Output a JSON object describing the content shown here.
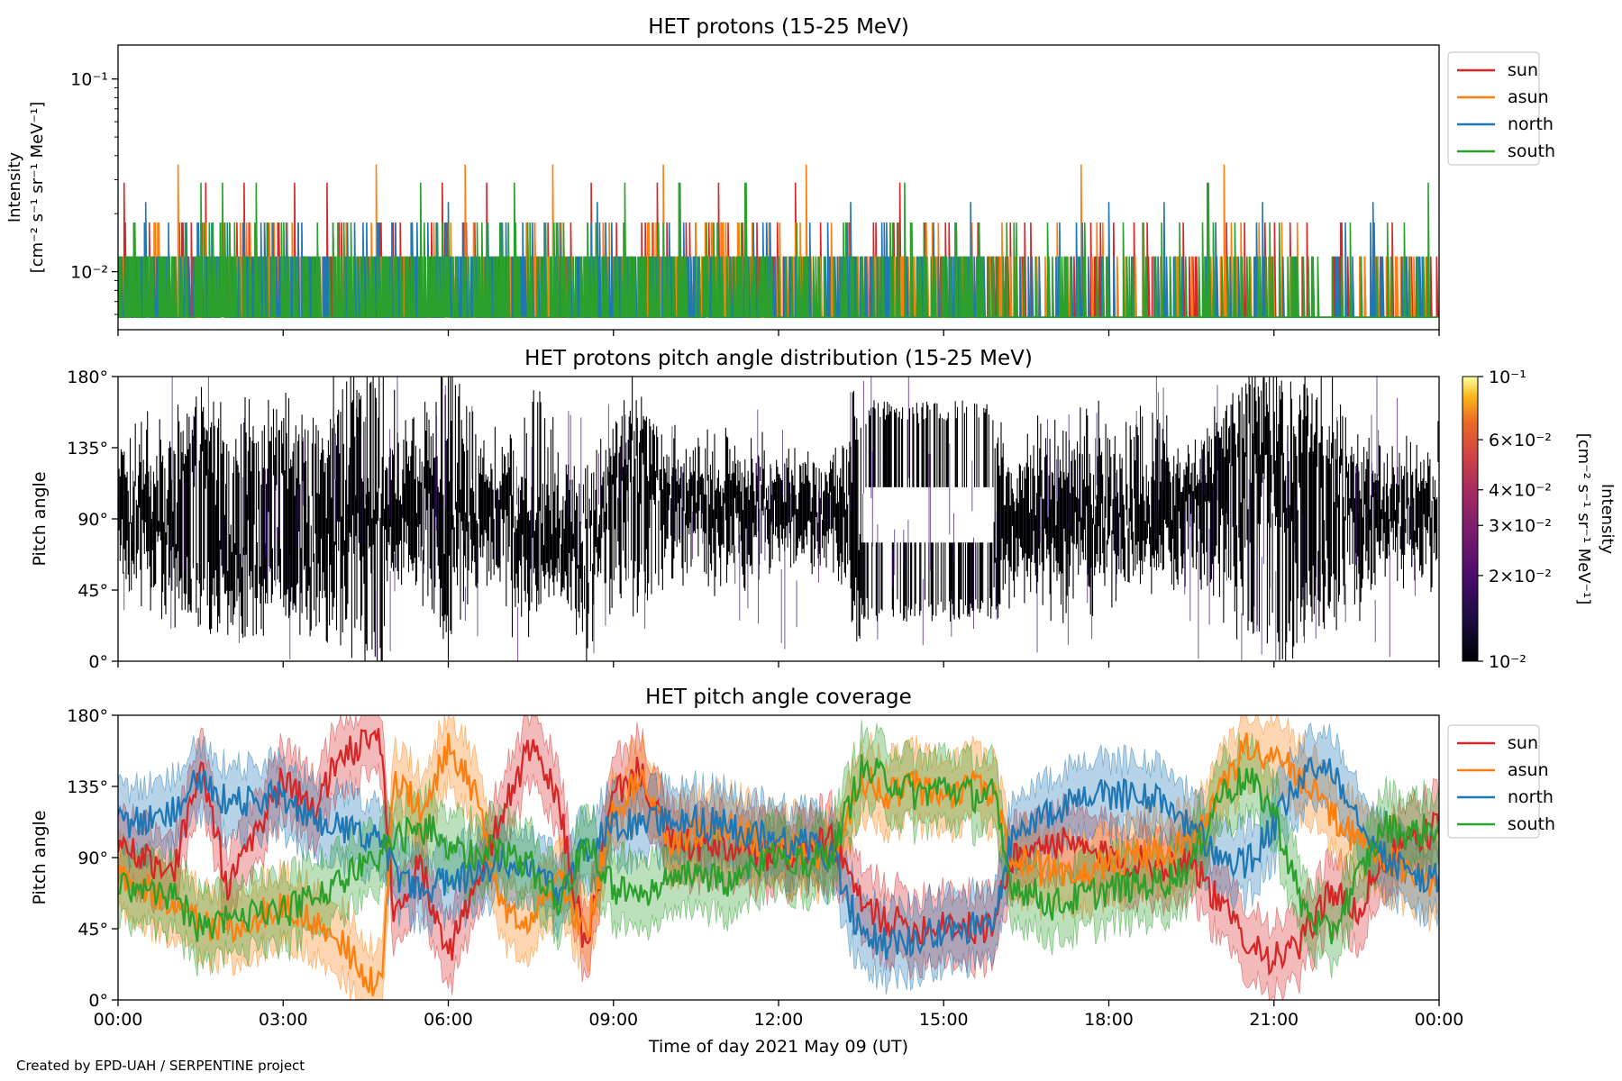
{
  "figure": {
    "xlabel": "Time of day 2021 May 09 (UT)",
    "xticks": [
      "00:00",
      "03:00",
      "06:00",
      "09:00",
      "12:00",
      "15:00",
      "18:00",
      "21:00",
      "00:00"
    ],
    "credit": "Created by EPD-UAH / SERPENTINE project"
  },
  "chart_data": [
    {
      "type": "line",
      "title": "HET protons (15-25 MeV)",
      "ylabel_line1": "Intensity",
      "ylabel_line2": "[cm⁻² s⁻¹ sr⁻¹ MeV⁻¹]",
      "yscale": "log",
      "ylim": [
        0.005,
        0.15
      ],
      "ytick_labels": [
        "10⁻¹",
        "10⁻²"
      ],
      "ytick_values": [
        0.1,
        0.01
      ],
      "xlim_hours": [
        0,
        24
      ],
      "legend_position": "outside-top-right",
      "series": [
        {
          "name": "sun",
          "color": "#d62728",
          "baseline": 0.0058,
          "levels": [
            0.012,
            0.018,
            0.029
          ],
          "spike_hours": [
            0.1,
            1.6,
            2.3,
            3.2,
            3.8,
            5.9,
            6.7,
            8.6,
            9.8,
            10.9,
            12.3,
            14.2
          ]
        },
        {
          "name": "asun",
          "color": "#ff7f0e",
          "baseline": 0.0058,
          "levels": [
            0.012,
            0.018,
            0.036
          ],
          "spike_hours": [
            1.1,
            4.7,
            6.3,
            7.9,
            9.9,
            12.5,
            17.5,
            20.1
          ]
        },
        {
          "name": "north",
          "color": "#1f77b4",
          "baseline": 0.0058,
          "levels": [
            0.012,
            0.018,
            0.023
          ],
          "spike_hours": [
            0.5,
            2.5,
            6.0,
            8.7,
            13.3,
            15.5,
            18.0,
            19.0,
            20.8,
            22.8
          ]
        },
        {
          "name": "south",
          "color": "#2ca02c",
          "baseline": 0.0058,
          "levels": [
            0.012,
            0.018,
            0.029
          ],
          "spike_hours": [
            1.5,
            1.9,
            2.5,
            5.5,
            7.2,
            9.2,
            10.2,
            11.4,
            14.3,
            19.8,
            23.8
          ]
        }
      ]
    },
    {
      "type": "heatmap",
      "title": "HET protons pitch angle distribution (15-25 MeV)",
      "ylabel": "Pitch angle",
      "ylim": [
        0,
        180
      ],
      "ytick_labels": [
        "0°",
        "45°",
        "90°",
        "135°",
        "180°"
      ],
      "ytick_values": [
        0,
        45,
        90,
        135,
        180
      ],
      "colorbar": {
        "label_line1": "Intensity",
        "label_line2": "[cm⁻² s⁻¹ sr⁻¹ MeV⁻¹]",
        "scale": "log",
        "range": [
          0.01,
          0.1
        ],
        "tick_labels": [
          "10⁻¹",
          "6×10⁻²",
          "4×10⁻²",
          "3×10⁻²",
          "2×10⁻²",
          "10⁻²"
        ],
        "tick_values": [
          0.1,
          0.06,
          0.04,
          0.03,
          0.02,
          0.01
        ],
        "colormap": "inferno"
      },
      "description_values": {
        "dominant_intensity": 0.01,
        "coverage_follows": "HET pitch angle coverage (sun/asun/north/south)"
      }
    },
    {
      "type": "line",
      "title": "HET pitch angle coverage",
      "ylabel": "Pitch angle",
      "ylim": [
        0,
        180
      ],
      "ytick_labels": [
        "0°",
        "45°",
        "90°",
        "135°",
        "180°"
      ],
      "ytick_values": [
        0,
        45,
        90,
        135,
        180
      ],
      "xlim_hours": [
        0,
        24
      ],
      "band_halfwidth_deg": 22,
      "legend_position": "outside-top-right",
      "series": [
        {
          "name": "sun",
          "color": "#d62728",
          "hours": [
            0,
            1,
            1.5,
            2,
            3,
            3.5,
            4,
            4.5,
            4.8,
            5.0,
            5.5,
            6.0,
            6.5,
            7,
            7.5,
            8,
            8.5,
            9,
            9.5,
            10,
            11,
            12,
            12.5,
            13,
            13.5,
            14,
            14.5,
            15,
            15.5,
            15.9,
            16.2,
            17,
            18,
            19,
            19.5,
            20,
            20.5,
            21,
            21.5,
            22,
            22.5,
            23,
            23.5,
            24
          ],
          "values": [
            100,
            80,
            150,
            70,
            140,
            120,
            150,
            165,
            160,
            60,
            85,
            30,
            70,
            120,
            160,
            125,
            30,
            130,
            145,
            100,
            95,
            90,
            95,
            100,
            60,
            50,
            45,
            50,
            45,
            45,
            90,
            100,
            90,
            85,
            90,
            60,
            40,
            25,
            35,
            70,
            55,
            90,
            100,
            110
          ]
        },
        {
          "name": "asun",
          "color": "#ff7f0e",
          "hours": [
            0,
            1,
            1.5,
            2,
            3,
            3.5,
            4,
            4.5,
            4.8,
            5.0,
            5.5,
            6.0,
            6.5,
            7,
            7.5,
            8,
            8.5,
            9,
            9.5,
            10,
            11,
            12,
            12.5,
            13,
            13.5,
            14,
            14.5,
            15,
            15.5,
            15.9,
            16.2,
            17,
            18,
            19,
            19.5,
            20,
            20.5,
            21,
            21.5,
            22,
            22.5,
            23,
            23.5,
            24
          ],
          "values": [
            80,
            60,
            50,
            45,
            60,
            50,
            40,
            15,
            10,
            140,
            120,
            160,
            130,
            60,
            50,
            80,
            40,
            120,
            140,
            100,
            110,
            95,
            95,
            90,
            140,
            130,
            135,
            130,
            135,
            130,
            90,
            80,
            85,
            95,
            100,
            130,
            160,
            155,
            140,
            120,
            100,
            90,
            80,
            70
          ]
        },
        {
          "name": "north",
          "color": "#1f77b4",
          "hours": [
            0,
            1,
            1.5,
            2,
            3,
            3.5,
            4,
            4.5,
            4.8,
            5.0,
            5.5,
            6.0,
            6.5,
            7,
            7.5,
            8,
            8.5,
            9,
            9.5,
            10,
            11,
            12,
            12.5,
            13,
            13.5,
            14,
            14.5,
            15,
            15.5,
            15.9,
            16.2,
            17,
            18,
            19,
            19.5,
            20,
            20.5,
            21,
            21.5,
            22,
            22.5,
            23,
            23.5,
            24
          ],
          "values": [
            110,
            120,
            140,
            125,
            130,
            115,
            110,
            105,
            100,
            80,
            70,
            75,
            80,
            90,
            85,
            70,
            95,
            110,
            110,
            115,
            110,
            100,
            100,
            90,
            40,
            35,
            40,
            45,
            45,
            45,
            100,
            120,
            130,
            125,
            110,
            90,
            85,
            110,
            140,
            150,
            120,
            90,
            80,
            75
          ]
        },
        {
          "name": "south",
          "color": "#2ca02c",
          "hours": [
            0,
            1,
            1.5,
            2,
            3,
            3.5,
            4,
            4.5,
            4.8,
            5.0,
            5.5,
            6.0,
            6.5,
            7,
            7.5,
            8,
            8.5,
            9,
            9.5,
            10,
            11,
            12,
            12.5,
            13,
            13.5,
            14,
            14.5,
            15,
            15.5,
            15.9,
            16.2,
            17,
            18,
            19,
            19.5,
            20,
            20.5,
            21,
            21.5,
            22,
            22.5,
            23,
            23.5,
            24
          ],
          "values": [
            75,
            65,
            45,
            50,
            55,
            65,
            75,
            85,
            95,
            100,
            110,
            100,
            90,
            95,
            85,
            60,
            100,
            70,
            65,
            80,
            75,
            90,
            85,
            95,
            145,
            140,
            130,
            135,
            130,
            130,
            75,
            60,
            70,
            75,
            85,
            130,
            140,
            120,
            60,
            40,
            75,
            110,
            105,
            110
          ]
        }
      ]
    }
  ]
}
